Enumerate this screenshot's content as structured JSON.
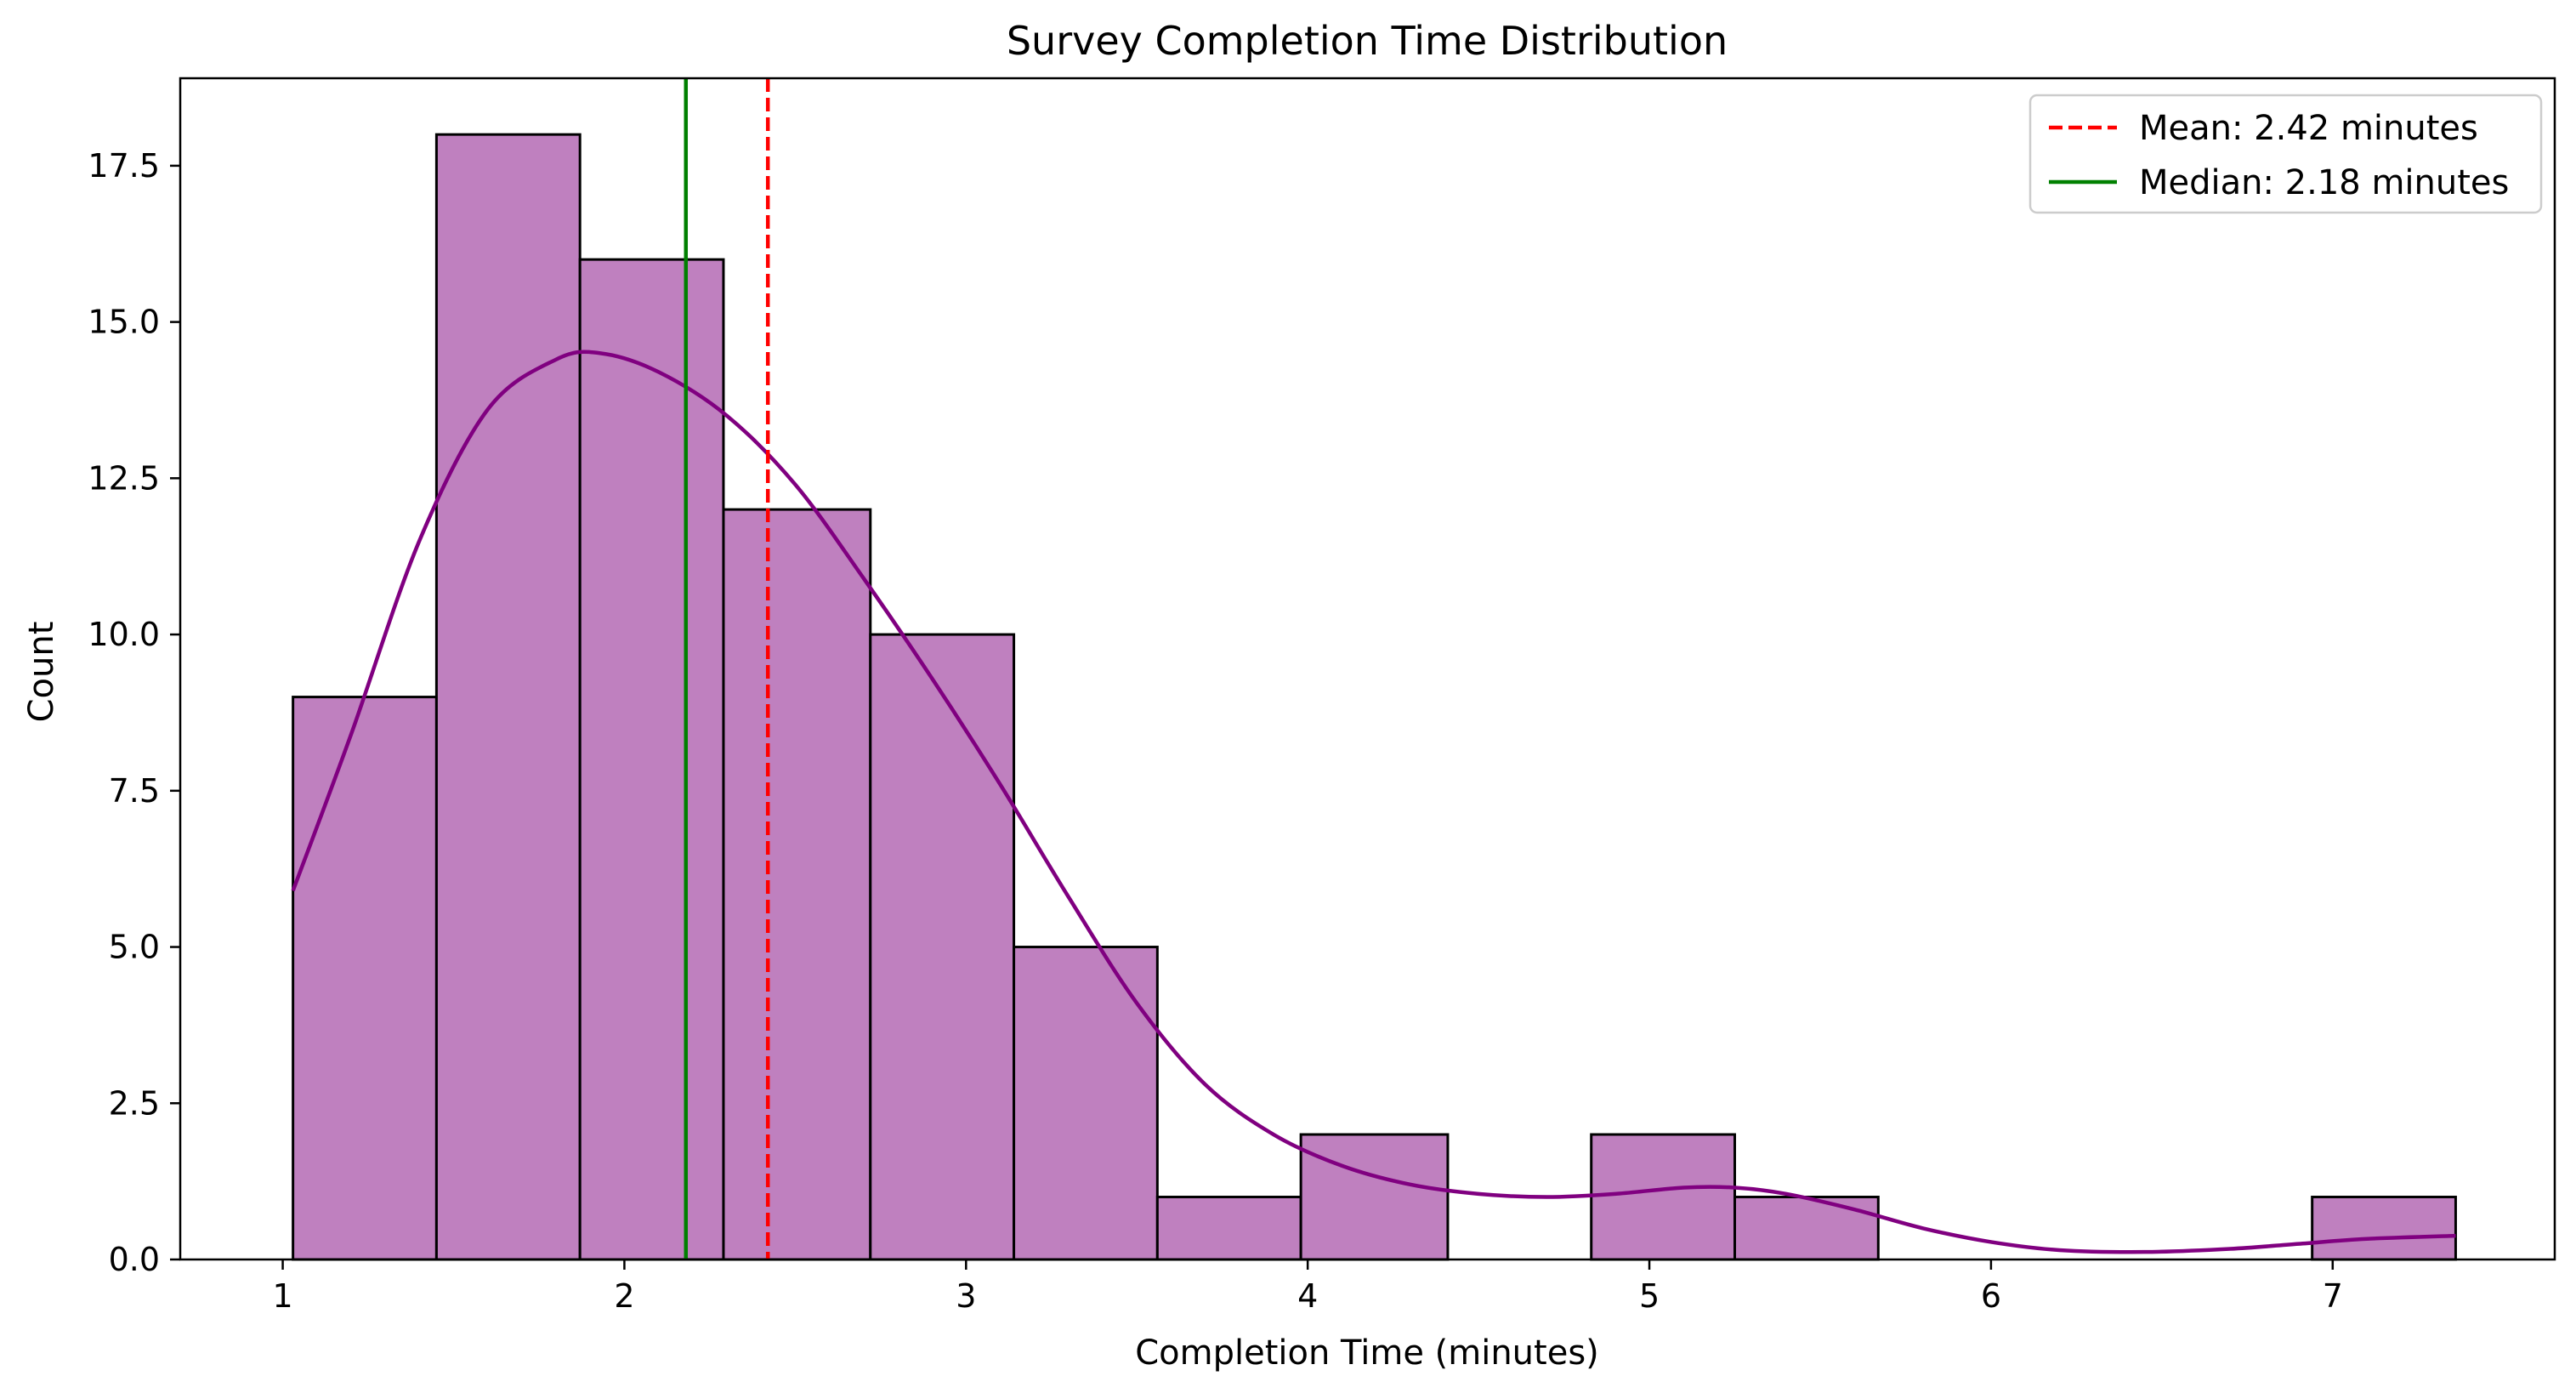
{
  "chart_data": {
    "type": "histogram",
    "title": "Survey Completion Time Distribution",
    "xlabel": "Completion Time (minutes)",
    "ylabel": "Count",
    "xlim": [
      0.7,
      7.65
    ],
    "ylim": [
      0,
      18.9
    ],
    "xticks": [
      1,
      2,
      3,
      4,
      5,
      6,
      7
    ],
    "xtick_labels": [
      "1",
      "2",
      "3",
      "4",
      "5",
      "6",
      "7"
    ],
    "yticks": [
      0,
      2.5,
      5,
      7.5,
      10,
      12.5,
      15,
      17.5
    ],
    "ytick_labels": [
      "0.0",
      "2.5",
      "5.0",
      "7.5",
      "10.0",
      "12.5",
      "15.0",
      "17.5"
    ],
    "bins": [
      {
        "x0": 1.03,
        "x1": 1.45,
        "count": 9
      },
      {
        "x0": 1.45,
        "x1": 1.87,
        "count": 18
      },
      {
        "x0": 1.87,
        "x1": 2.29,
        "count": 16
      },
      {
        "x0": 2.29,
        "x1": 2.72,
        "count": 12
      },
      {
        "x0": 2.72,
        "x1": 3.14,
        "count": 10
      },
      {
        "x0": 3.14,
        "x1": 3.56,
        "count": 5
      },
      {
        "x0": 3.56,
        "x1": 3.98,
        "count": 1
      },
      {
        "x0": 3.98,
        "x1": 4.41,
        "count": 2
      },
      {
        "x0": 4.41,
        "x1": 4.83,
        "count": 0
      },
      {
        "x0": 4.83,
        "x1": 5.25,
        "count": 2
      },
      {
        "x0": 5.25,
        "x1": 5.67,
        "count": 1
      },
      {
        "x0": 5.67,
        "x1": 6.1,
        "count": 0
      },
      {
        "x0": 6.1,
        "x1": 6.52,
        "count": 0
      },
      {
        "x0": 6.52,
        "x1": 6.94,
        "count": 0
      },
      {
        "x0": 6.94,
        "x1": 7.36,
        "count": 1
      }
    ],
    "kde": {
      "x": [
        1.03,
        1.2,
        1.4,
        1.6,
        1.8,
        1.93,
        2.1,
        2.3,
        2.5,
        2.7,
        2.9,
        3.1,
        3.3,
        3.5,
        3.7,
        3.9,
        4.1,
        4.3,
        4.5,
        4.7,
        4.9,
        5.1,
        5.25,
        5.4,
        5.6,
        5.8,
        6.0,
        6.2,
        6.45,
        6.7,
        6.9,
        7.1,
        7.36
      ],
      "y": [
        5.9,
        8.4,
        11.5,
        13.6,
        14.4,
        14.5,
        14.2,
        13.5,
        12.4,
        10.9,
        9.3,
        7.6,
        5.8,
        4.1,
        2.8,
        2.0,
        1.5,
        1.2,
        1.05,
        1.0,
        1.05,
        1.15,
        1.15,
        1.05,
        0.8,
        0.5,
        0.28,
        0.15,
        0.12,
        0.17,
        0.25,
        0.33,
        0.38
      ]
    },
    "vlines": [
      {
        "name": "Mean: 2.42 minutes",
        "x": 2.42,
        "style": "dashed",
        "color": "#ff0000"
      },
      {
        "name": "Median: 2.18 minutes",
        "x": 2.18,
        "style": "solid",
        "color": "#008000"
      }
    ],
    "bar_color": "#bf80bf",
    "bar_edge_color": "#000000",
    "kde_color": "#800080",
    "legend_position": "top-right",
    "grid": false
  }
}
